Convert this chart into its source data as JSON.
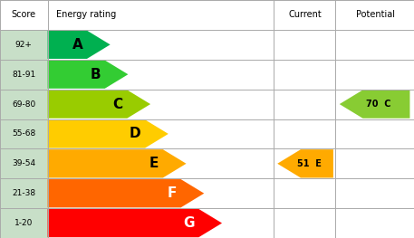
{
  "bands": [
    {
      "label": "A",
      "score": "92+",
      "color": "#00b050",
      "bar_width": 0.28
    },
    {
      "label": "B",
      "score": "81-91",
      "color": "#33cc33",
      "bar_width": 0.36
    },
    {
      "label": "C",
      "score": "69-80",
      "color": "#99cc00",
      "bar_width": 0.46
    },
    {
      "label": "D",
      "score": "55-68",
      "color": "#ffcc00",
      "bar_width": 0.54
    },
    {
      "label": "E",
      "score": "39-54",
      "color": "#ffaa00",
      "bar_width": 0.62
    },
    {
      "label": "F",
      "score": "21-38",
      "color": "#ff6600",
      "bar_width": 0.7
    },
    {
      "label": "G",
      "score": "1-20",
      "color": "#ff0000",
      "bar_width": 0.78
    }
  ],
  "current": {
    "value": 51,
    "band": "E",
    "color": "#ffaa00",
    "row": 4
  },
  "potential": {
    "value": 70,
    "band": "C",
    "color": "#88cc33",
    "row": 2
  },
  "header": [
    "Score",
    "Energy rating",
    "Current",
    "Potential"
  ],
  "background_color": "#ffffff",
  "score_bg": "#c8dfc8",
  "grid_color": "#aaaaaa"
}
